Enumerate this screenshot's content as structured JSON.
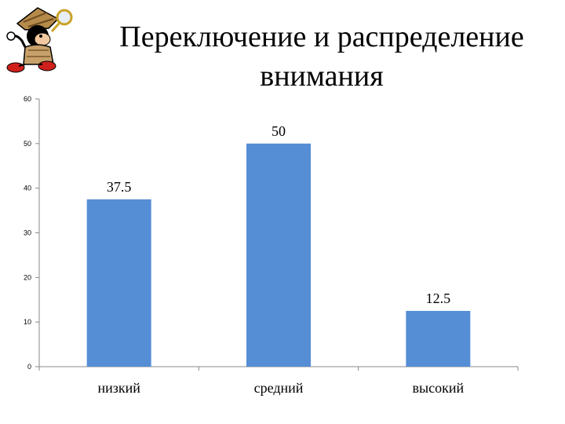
{
  "title_line1": "Переключение и распределение",
  "title_line2": "внимания",
  "logo_icon": "cartoon-mouse-detective-icon",
  "chart_data": {
    "type": "bar",
    "categories": [
      "низкий",
      "средний",
      "высокий"
    ],
    "values": [
      37.5,
      50,
      12.5
    ],
    "data_labels": [
      "37.5",
      "50",
      "12.5"
    ],
    "ylim": [
      0,
      60
    ],
    "yticks": [
      0,
      10,
      20,
      30,
      40,
      50,
      60
    ],
    "bar_color": "#558ed5",
    "grid": false,
    "legend": "none"
  }
}
